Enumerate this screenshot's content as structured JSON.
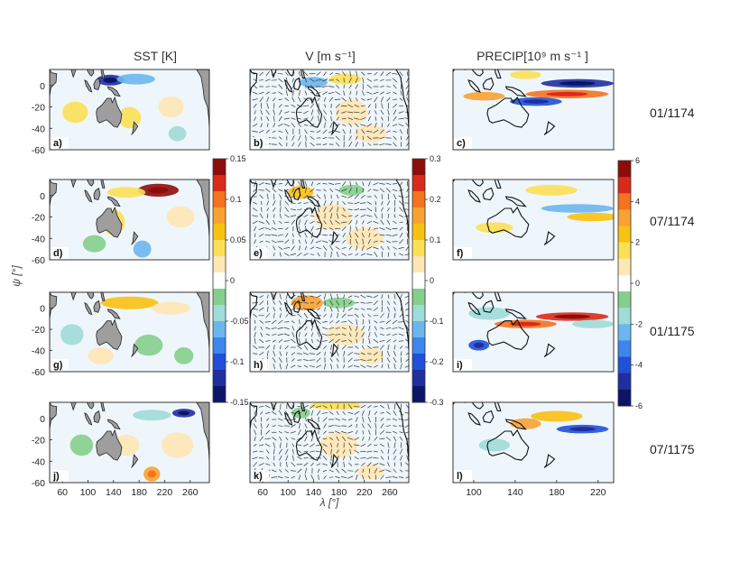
{
  "figure": {
    "column_titles": [
      "SST [K]",
      "V [m s⁻¹]",
      "PRECIP[10⁹ m s⁻¹ ]"
    ],
    "row_dates": [
      "01/1174",
      "07/1174",
      "01/1175",
      "07/1175"
    ],
    "panel_letters": [
      "a)",
      "b)",
      "c)",
      "d)",
      "e)",
      "f)",
      "g)",
      "h)",
      "i)",
      "j)",
      "k)",
      "l)"
    ],
    "ylabel": "ψ [°]",
    "xlabel": "λ [°]"
  },
  "chart_data": [
    {
      "type": "heatmap",
      "title": "SST [K]",
      "x_ticks": [
        "60",
        "100",
        "140",
        "180",
        "220",
        "260"
      ],
      "y_ticks": [
        "0",
        "-20",
        "-40",
        "-60"
      ],
      "xlim": [
        40,
        290
      ],
      "ylim": [
        -60,
        15
      ],
      "colorbar": {
        "min": -0.15,
        "max": 0.15,
        "ticks": [
          "0.15",
          "0.1",
          "0.05",
          "0",
          "-0.05",
          "-0.1",
          "-0.15"
        ]
      },
      "panels": [
        {
          "label": "a)",
          "date": "01/1174",
          "features": [
            {
              "lon": 135,
              "lat": 5,
              "value": -0.12,
              "rx": 22,
              "ry": 5
            },
            {
              "lon": 175,
              "lat": 6,
              "value": -0.06,
              "rx": 30,
              "ry": 5
            },
            {
              "lon": 80,
              "lat": -25,
              "value": 0.04,
              "rx": 20,
              "ry": 10
            },
            {
              "lon": 165,
              "lat": -30,
              "value": 0.05,
              "rx": 18,
              "ry": 10
            },
            {
              "lon": 230,
              "lat": -20,
              "value": 0.03,
              "rx": 20,
              "ry": 10
            },
            {
              "lon": 240,
              "lat": -45,
              "value": -0.04,
              "rx": 14,
              "ry": 7
            }
          ]
        },
        {
          "label": "d)",
          "date": "07/1174",
          "features": [
            {
              "lon": 210,
              "lat": 5,
              "value": 0.14,
              "rx": 32,
              "ry": 6
            },
            {
              "lon": 160,
              "lat": 3,
              "value": 0.05,
              "rx": 30,
              "ry": 5
            },
            {
              "lon": 140,
              "lat": -25,
              "value": 0.05,
              "rx": 18,
              "ry": 12
            },
            {
              "lon": 110,
              "lat": -45,
              "value": -0.03,
              "rx": 18,
              "ry": 8
            },
            {
              "lon": 185,
              "lat": -50,
              "value": -0.07,
              "rx": 14,
              "ry": 8
            },
            {
              "lon": 245,
              "lat": -20,
              "value": 0.03,
              "rx": 22,
              "ry": 10
            }
          ]
        },
        {
          "label": "g)",
          "date": "01/1175",
          "features": [
            {
              "lon": 165,
              "lat": 5,
              "value": 0.06,
              "rx": 45,
              "ry": 6
            },
            {
              "lon": 230,
              "lat": 0,
              "value": 0.03,
              "rx": 30,
              "ry": 6
            },
            {
              "lon": 75,
              "lat": -25,
              "value": -0.04,
              "rx": 18,
              "ry": 10
            },
            {
              "lon": 120,
              "lat": -45,
              "value": 0.03,
              "rx": 20,
              "ry": 8
            },
            {
              "lon": 195,
              "lat": -35,
              "value": -0.03,
              "rx": 22,
              "ry": 10
            },
            {
              "lon": 250,
              "lat": -45,
              "value": -0.03,
              "rx": 15,
              "ry": 8
            }
          ]
        },
        {
          "label": "j)",
          "date": "07/1175",
          "features": [
            {
              "lon": 250,
              "lat": 5,
              "value": -0.12,
              "rx": 18,
              "ry": 4
            },
            {
              "lon": 200,
              "lat": 3,
              "value": -0.05,
              "rx": 30,
              "ry": 5
            },
            {
              "lon": 200,
              "lat": -52,
              "value": 0.08,
              "rx": 13,
              "ry": 7
            },
            {
              "lon": 160,
              "lat": -25,
              "value": 0.03,
              "rx": 20,
              "ry": 10
            },
            {
              "lon": 90,
              "lat": -25,
              "value": -0.03,
              "rx": 18,
              "ry": 10
            },
            {
              "lon": 240,
              "lat": -25,
              "value": 0.03,
              "rx": 25,
              "ry": 12
            }
          ]
        }
      ]
    },
    {
      "type": "heatmap",
      "title": "V [m s⁻¹]",
      "x_ticks": [
        "60",
        "100",
        "140",
        "180",
        "220",
        "260"
      ],
      "y_ticks": [
        "0",
        "-20",
        "-40",
        "-60"
      ],
      "xlim": [
        40,
        290
      ],
      "ylim": [
        -60,
        15
      ],
      "colorbar": {
        "min": -0.3,
        "max": 0.3,
        "ticks": [
          "0.3",
          "0.2",
          "0.1",
          "0",
          "-0.1",
          "-0.2",
          "-0.3"
        ]
      },
      "panels": [
        {
          "label": "b)",
          "date": "01/1174",
          "features": [
            {
              "lon": 140,
              "lat": 3,
              "value": -0.12,
              "rx": 22,
              "ry": 5
            },
            {
              "lon": 190,
              "lat": 6,
              "value": 0.1,
              "rx": 25,
              "ry": 5
            },
            {
              "lon": 200,
              "lat": -25,
              "value": 0.06,
              "rx": 25,
              "ry": 12
            },
            {
              "lon": 230,
              "lat": -45,
              "value": 0.04,
              "rx": 25,
              "ry": 8
            }
          ]
        },
        {
          "label": "e)",
          "date": "07/1174",
          "features": [
            {
              "lon": 120,
              "lat": 3,
              "value": 0.12,
              "rx": 20,
              "ry": 6
            },
            {
              "lon": 170,
              "lat": -20,
              "value": 0.04,
              "rx": 30,
              "ry": 12
            },
            {
              "lon": 220,
              "lat": -40,
              "value": 0.03,
              "rx": 30,
              "ry": 10
            },
            {
              "lon": 200,
              "lat": 5,
              "value": -0.04,
              "rx": 20,
              "ry": 5
            }
          ]
        },
        {
          "label": "h)",
          "date": "01/1175",
          "features": [
            {
              "lon": 130,
              "lat": 5,
              "value": 0.15,
              "rx": 25,
              "ry": 7
            },
            {
              "lon": 180,
              "lat": 5,
              "value": -0.06,
              "rx": 25,
              "ry": 5
            },
            {
              "lon": 190,
              "lat": -25,
              "value": 0.04,
              "rx": 30,
              "ry": 10
            },
            {
              "lon": 230,
              "lat": -45,
              "value": 0.03,
              "rx": 20,
              "ry": 8
            }
          ]
        },
        {
          "label": "k)",
          "date": "07/1175",
          "features": [
            {
              "lon": 175,
              "lat": 12,
              "value": 0.08,
              "rx": 40,
              "ry": 4
            },
            {
              "lon": 120,
              "lat": 5,
              "value": -0.06,
              "rx": 15,
              "ry": 5
            },
            {
              "lon": 180,
              "lat": -25,
              "value": 0.04,
              "rx": 30,
              "ry": 12
            },
            {
              "lon": 230,
              "lat": -50,
              "value": 0.03,
              "rx": 20,
              "ry": 7
            }
          ]
        }
      ]
    },
    {
      "type": "heatmap",
      "title": "PRECIP[10⁹ m s⁻¹ ]",
      "x_ticks": [
        "100",
        "140",
        "180",
        "220"
      ],
      "y_ticks": [],
      "xlim": [
        80,
        235
      ],
      "ylim": [
        -60,
        15
      ],
      "colorbar": {
        "min": -6,
        "max": 6,
        "ticks": [
          "6",
          "4",
          "2",
          "0",
          "-2",
          "-4",
          "-6"
        ]
      },
      "panels": [
        {
          "label": "c)",
          "date": "01/1174",
          "features": [
            {
              "lon": 200,
              "lat": 2,
              "value": -5,
              "rx": 35,
              "ry": 4
            },
            {
              "lon": 190,
              "lat": -8,
              "value": 4,
              "rx": 40,
              "ry": 4
            },
            {
              "lon": 160,
              "lat": -15,
              "value": -4,
              "rx": 25,
              "ry": 4
            },
            {
              "lon": 110,
              "lat": -10,
              "value": 3,
              "rx": 20,
              "ry": 4
            },
            {
              "lon": 150,
              "lat": 10,
              "value": 2,
              "rx": 15,
              "ry": 4
            }
          ]
        },
        {
          "label": "f)",
          "date": "07/1174",
          "features": [
            {
              "lon": 200,
              "lat": -12,
              "value": -2.5,
              "rx": 35,
              "ry": 4
            },
            {
              "lon": 215,
              "lat": -20,
              "value": 2.5,
              "rx": 25,
              "ry": 4
            },
            {
              "lon": 120,
              "lat": -30,
              "value": 2,
              "rx": 18,
              "ry": 5
            },
            {
              "lon": 175,
              "lat": 5,
              "value": 1.5,
              "rx": 25,
              "ry": 5
            }
          ]
        },
        {
          "label": "i)",
          "date": "01/1175",
          "features": [
            {
              "lon": 195,
              "lat": -8,
              "value": 5,
              "rx": 35,
              "ry": 4
            },
            {
              "lon": 150,
              "lat": -15,
              "value": 4,
              "rx": 30,
              "ry": 4
            },
            {
              "lon": 105,
              "lat": -35,
              "value": -4,
              "rx": 10,
              "ry": 5
            },
            {
              "lon": 115,
              "lat": -5,
              "value": -2,
              "rx": 20,
              "ry": 6
            },
            {
              "lon": 215,
              "lat": -15,
              "value": -2,
              "rx": 20,
              "ry": 4
            }
          ]
        },
        {
          "label": "l)",
          "date": "07/1175",
          "features": [
            {
              "lon": 205,
              "lat": -10,
              "value": -4,
              "rx": 25,
              "ry": 4
            },
            {
              "lon": 180,
              "lat": 2,
              "value": 2.5,
              "rx": 25,
              "ry": 5
            },
            {
              "lon": 150,
              "lat": -5,
              "value": 3,
              "rx": 15,
              "ry": 5
            },
            {
              "lon": 120,
              "lat": -25,
              "value": -1.5,
              "rx": 15,
              "ry": 6
            }
          ]
        }
      ]
    }
  ]
}
